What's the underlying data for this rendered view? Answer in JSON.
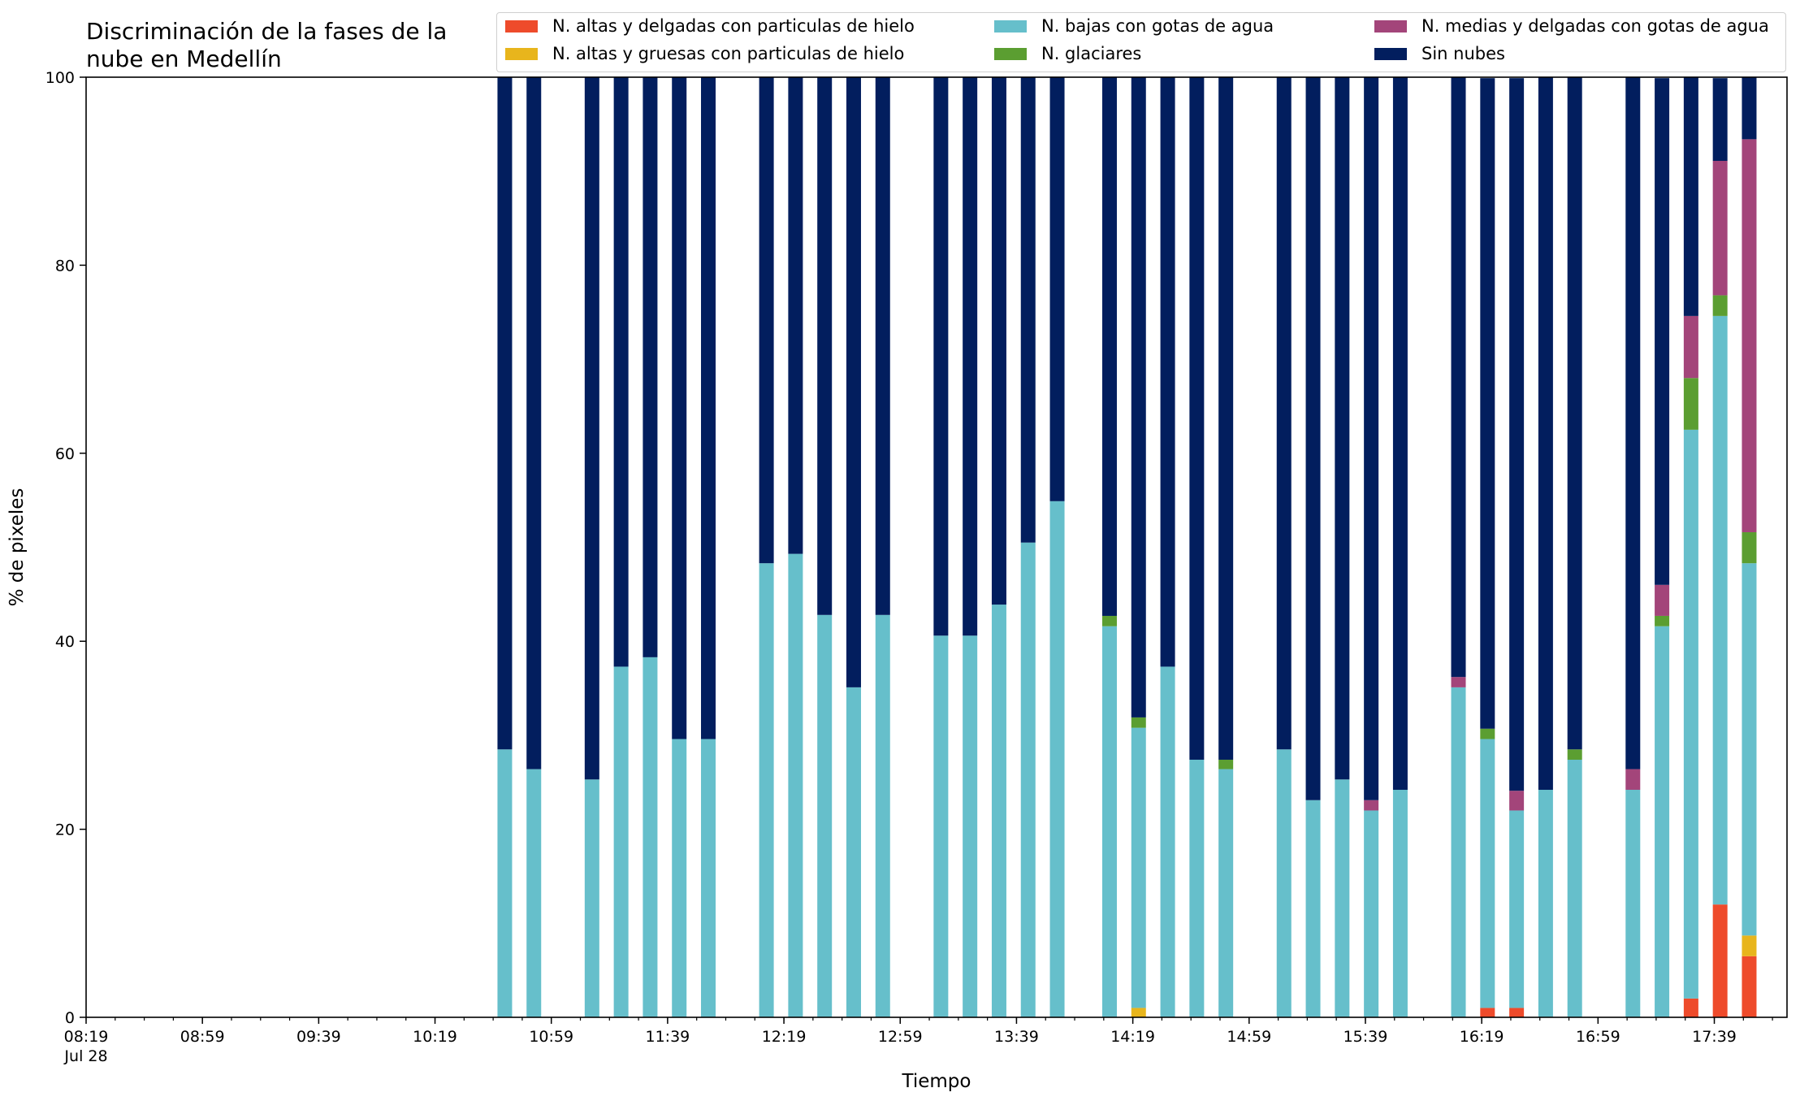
{
  "chart_data": {
    "type": "bar",
    "stacked": true,
    "title_lines": [
      "Discriminación de la fases de la",
      "nube en Medellín"
    ],
    "xlabel": "Tiempo",
    "ylabel": "% de pixeles",
    "ylim": [
      0,
      100
    ],
    "yticks": [
      0,
      20,
      40,
      60,
      80,
      100
    ],
    "grid": false,
    "legend_position": "top-right",
    "x_axis": {
      "date_label": "Jul 28",
      "start": "08:19",
      "end": "18:04",
      "major_ticks": [
        "08:19",
        "08:59",
        "09:39",
        "10:19",
        "10:59",
        "11:39",
        "12:19",
        "12:59",
        "13:39",
        "14:19",
        "14:59",
        "15:39",
        "16:19",
        "16:59",
        "17:39"
      ],
      "minor_tick_step_minutes": 10
    },
    "times": [
      "10:43",
      "10:53",
      "11:13",
      "11:23",
      "11:33",
      "11:43",
      "11:53",
      "12:13",
      "12:23",
      "12:33",
      "12:43",
      "12:53",
      "13:13",
      "13:23",
      "13:33",
      "13:43",
      "13:53",
      "14:11",
      "14:21",
      "14:31",
      "14:41",
      "14:51",
      "15:11",
      "15:21",
      "15:31",
      "15:41",
      "15:51",
      "16:11",
      "16:21",
      "16:31",
      "16:41",
      "16:51",
      "17:11",
      "17:21",
      "17:31",
      "17:41",
      "17:51"
    ],
    "series": [
      {
        "name": "N. altas y delgadas con particulas de hielo",
        "color": "#ee4b2b",
        "values": [
          0,
          0,
          0,
          0,
          0,
          0,
          0,
          0,
          0,
          0,
          0,
          0,
          0,
          0,
          0,
          0,
          0,
          0,
          0,
          0,
          0,
          0,
          0,
          0,
          0,
          0,
          0,
          0,
          1,
          1,
          0,
          0,
          0,
          0,
          2,
          12,
          6.5
        ]
      },
      {
        "name": "N. altas y gruesas con particulas de hielo",
        "color": "#e8b51c",
        "values": [
          0,
          0,
          0,
          0,
          0,
          0,
          0,
          0,
          0,
          0,
          0,
          0,
          0,
          0,
          0,
          0,
          0,
          0,
          1,
          0,
          0,
          0,
          0,
          0,
          0,
          0,
          0,
          0,
          0,
          0,
          0,
          0,
          0,
          0,
          0,
          0,
          2.2
        ]
      },
      {
        "name": "N. bajas con gotas de agua",
        "color": "#66bfcb",
        "values": [
          28.5,
          26.4,
          25.3,
          37.3,
          38.3,
          29.6,
          29.6,
          48.3,
          49.3,
          42.8,
          35.1,
          42.8,
          40.6,
          40.6,
          43.9,
          50.5,
          54.9,
          41.6,
          29.8,
          37.3,
          27.4,
          26.4,
          28.5,
          23.1,
          25.3,
          22,
          24.2,
          35.1,
          28.6,
          21,
          24.2,
          27.4,
          24.2,
          41.6,
          60.5,
          62.6,
          39.6
        ]
      },
      {
        "name": "N. glaciares",
        "color": "#5b9e31",
        "values": [
          0,
          0,
          0,
          0,
          0,
          0,
          0,
          0,
          0,
          0,
          0,
          0,
          0,
          0,
          0,
          0,
          0,
          1.1,
          1.1,
          0,
          0,
          1,
          0,
          0,
          0,
          0,
          0,
          0,
          1.1,
          0,
          0,
          1.1,
          0,
          1.1,
          5.5,
          2.2,
          3.3
        ]
      },
      {
        "name": "N. medias y delgadas con gotas de agua",
        "color": "#a3457a",
        "values": [
          0,
          0,
          0,
          0,
          0,
          0,
          0,
          0,
          0,
          0,
          0,
          0,
          0,
          0,
          0,
          0,
          0,
          0,
          0,
          0,
          0,
          0,
          0,
          0,
          0,
          1.1,
          0,
          1.1,
          0,
          2.1,
          0,
          0,
          2.2,
          3.3,
          6.6,
          14.3,
          41.8
        ]
      },
      {
        "name": "Sin nubes",
        "color": "#021e5e",
        "values": [
          71.5,
          73.6,
          74.7,
          62.7,
          61.7,
          70.4,
          70.4,
          51.7,
          50.7,
          57.2,
          64.9,
          57.2,
          59.4,
          59.4,
          56.1,
          49.5,
          45.1,
          57.3,
          68.1,
          62.7,
          72.6,
          72.6,
          71.5,
          76.9,
          74.7,
          76.9,
          75.8,
          63.8,
          69.2,
          75.8,
          75.8,
          71.5,
          73.6,
          53.9,
          25.4,
          8.8,
          6.6
        ]
      }
    ]
  }
}
